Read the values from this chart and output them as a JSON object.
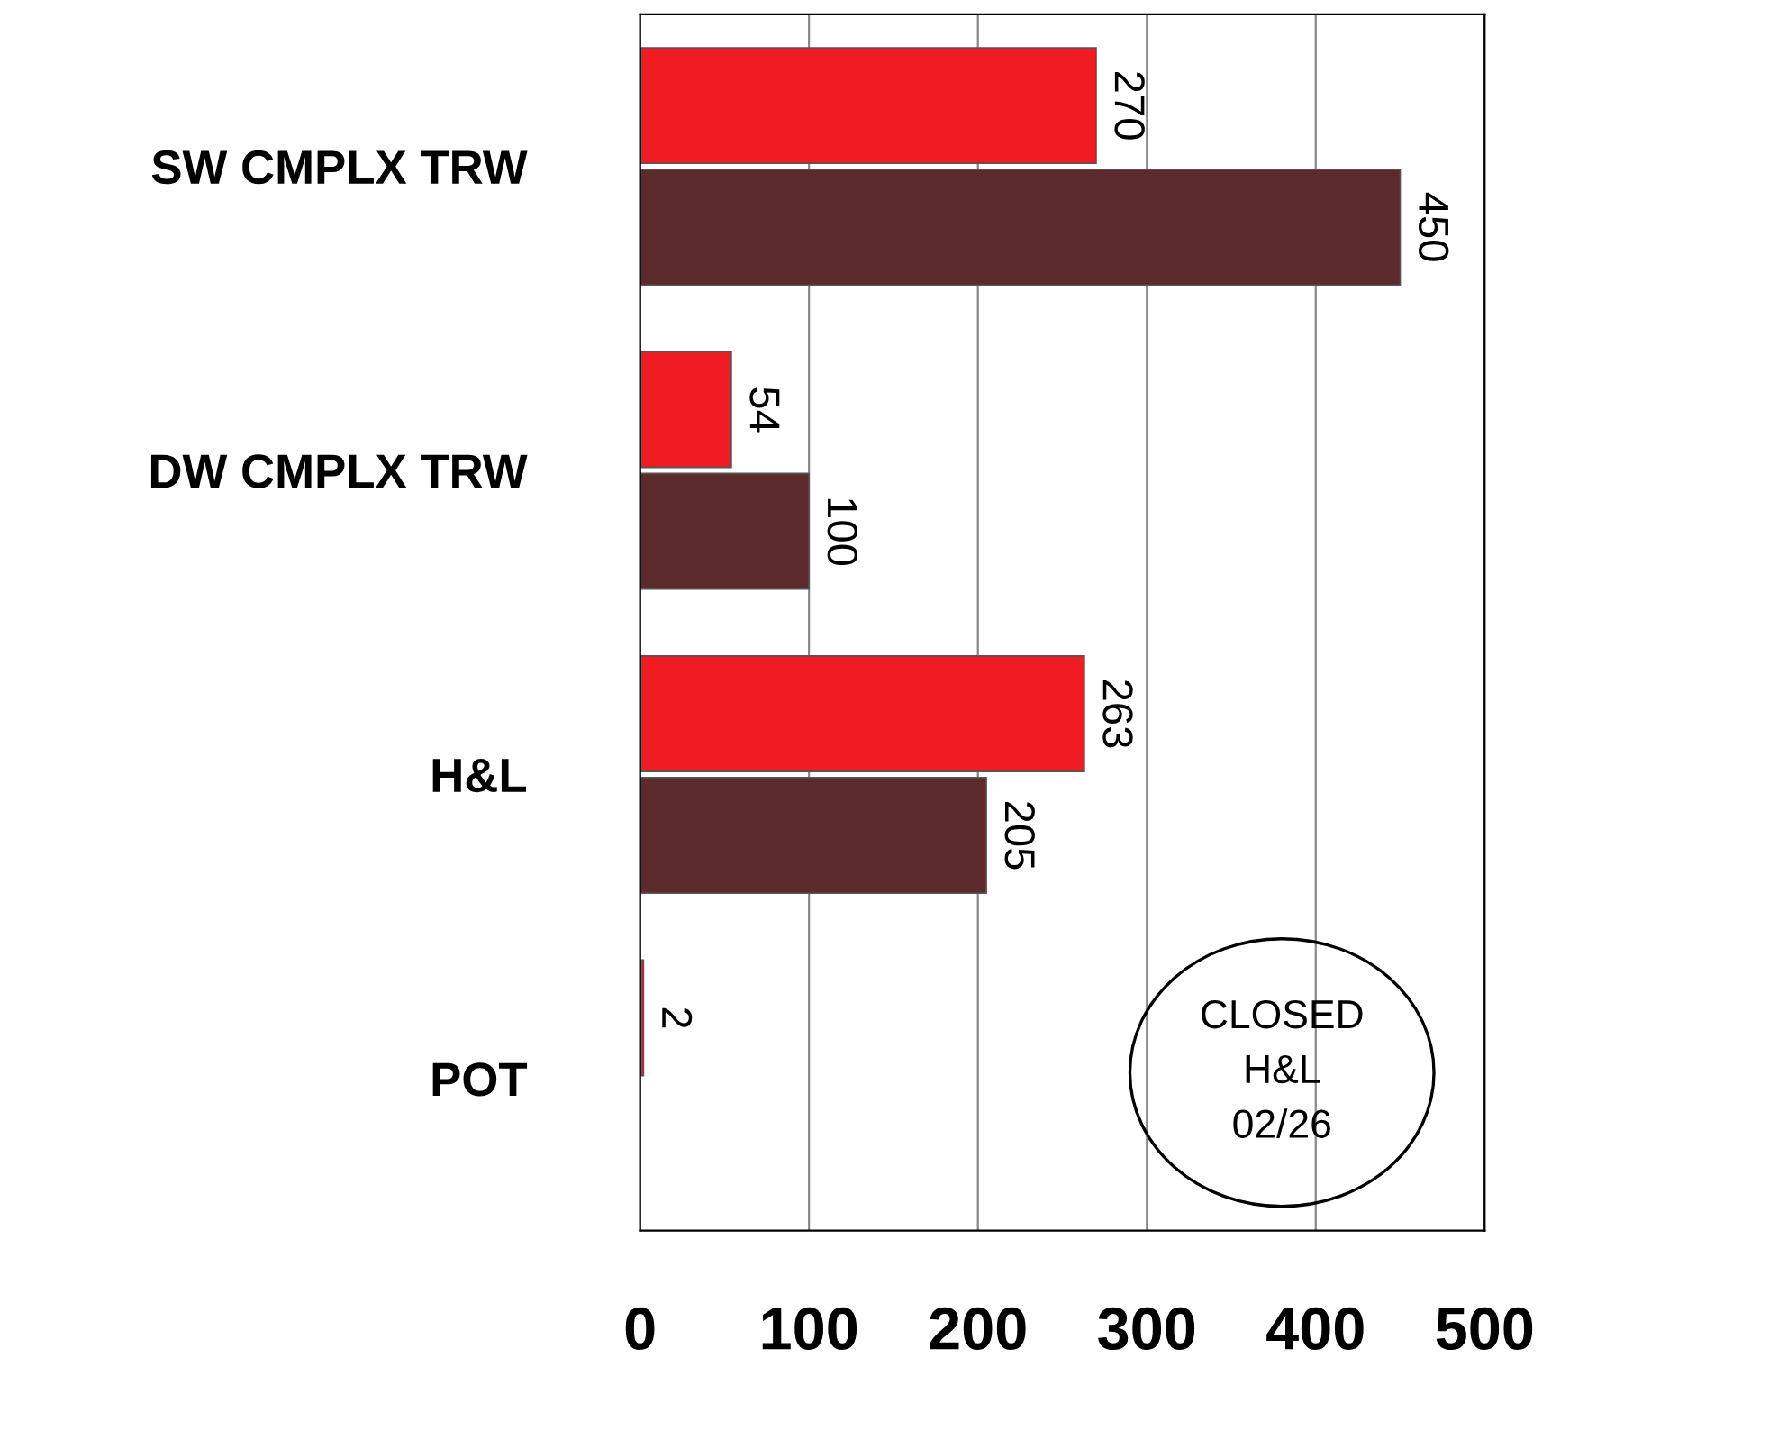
{
  "chart_data": {
    "type": "bar",
    "orientation": "horizontal",
    "categories": [
      "SW CMPLX TRW",
      "DW CMPLX TRW",
      "H&L",
      "POT"
    ],
    "series": [
      {
        "color": "#f01c24",
        "values": [
          270,
          54,
          263,
          2
        ]
      },
      {
        "color": "#5c2a2a",
        "values": [
          450,
          100,
          205,
          null
        ]
      }
    ],
    "xlim": [
      0,
      500
    ],
    "xticks": [
      0,
      100,
      200,
      300,
      400,
      500
    ],
    "grid": "x",
    "data_labels": true,
    "annotations": [
      "CLOSED\nH&L\n02/26"
    ]
  }
}
